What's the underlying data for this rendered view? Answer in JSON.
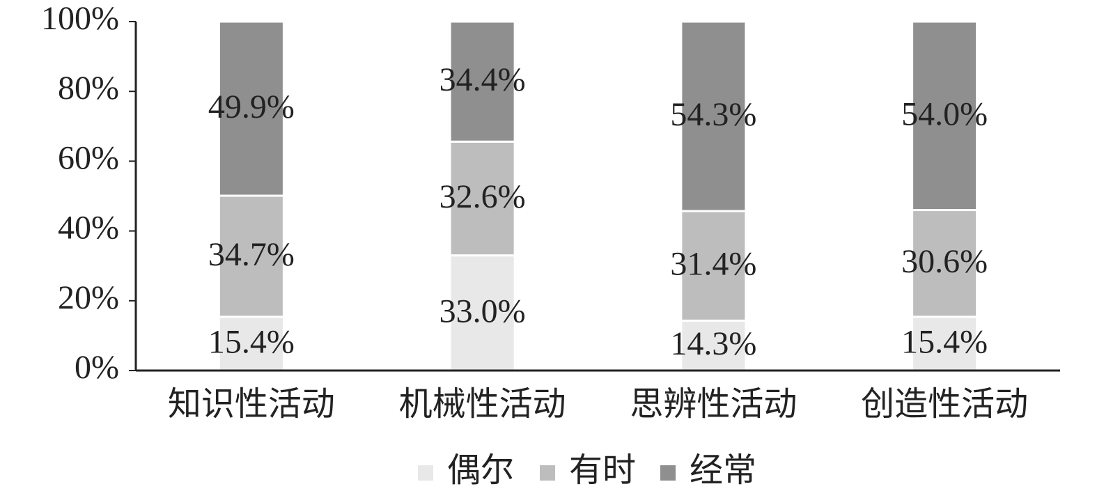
{
  "chart_data": {
    "type": "stacked_bar",
    "categories": [
      "知识性活动",
      "机械性活动",
      "思辨性活动",
      "创造性活动"
    ],
    "series": [
      {
        "name": "偶尔",
        "color": "#e8e8e8",
        "values": [
          15.4,
          33.0,
          14.3,
          15.4
        ],
        "value_labels": [
          "15.4%",
          "33.0%",
          "14.3%",
          "15.4%"
        ]
      },
      {
        "name": "有时",
        "color": "#bdbdbd",
        "values": [
          34.7,
          32.6,
          31.4,
          30.6
        ],
        "value_labels": [
          "34.7%",
          "32.6%",
          "31.4%",
          "30.6%"
        ]
      },
      {
        "name": "经常",
        "color": "#8f8f8f",
        "values": [
          49.9,
          34.4,
          54.3,
          54.0
        ],
        "value_labels": [
          "49.9%",
          "34.4%",
          "54.3%",
          "54.0%"
        ]
      }
    ],
    "ylim": [
      0,
      100
    ],
    "yticks": [
      {
        "value": 0,
        "label": "0%"
      },
      {
        "value": 20,
        "label": "20%"
      },
      {
        "value": 40,
        "label": "40%"
      },
      {
        "value": 60,
        "label": "60%"
      },
      {
        "value": 80,
        "label": "80%"
      },
      {
        "value": 100,
        "label": "100%"
      }
    ],
    "legend": "bottom"
  }
}
